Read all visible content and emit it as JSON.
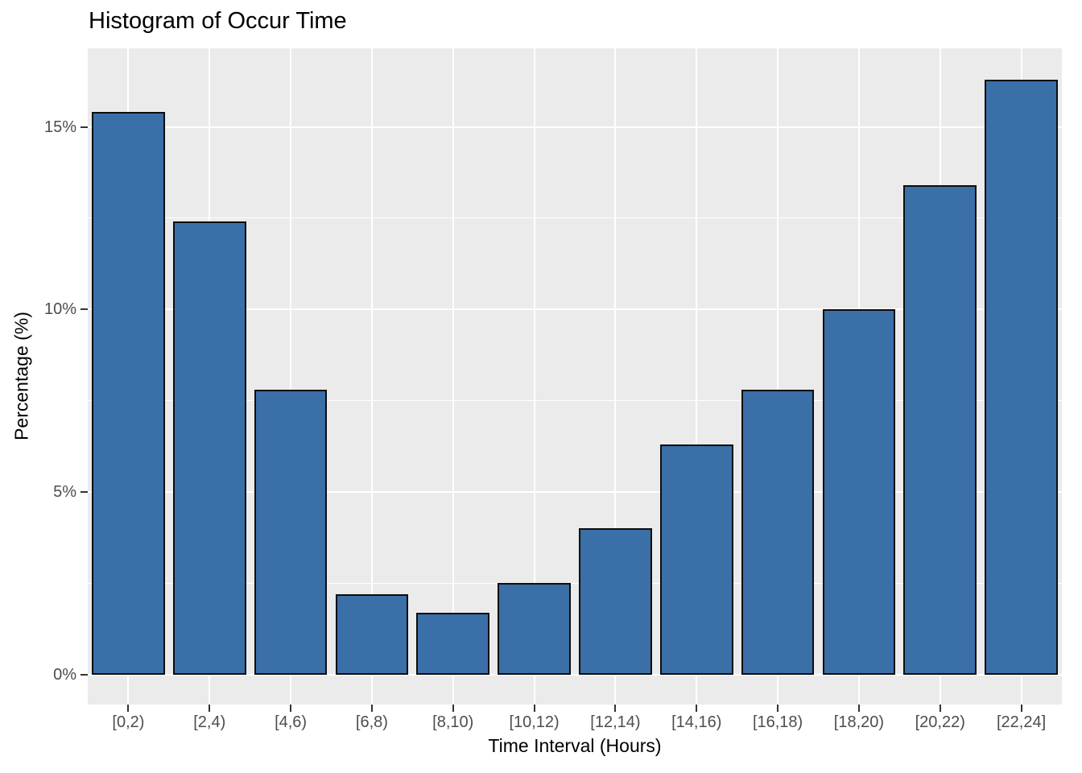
{
  "chart_data": {
    "type": "bar",
    "title": "Histogram of Occur Time",
    "xlabel": "Time Interval (Hours)",
    "ylabel": "Percentage (%)",
    "categories": [
      "[0,2)",
      "[2,4)",
      "[4,6)",
      "[6,8)",
      "[8,10)",
      "[10,12)",
      "[12,14)",
      "[14,16)",
      "[16,18)",
      "[18,20)",
      "[20,22)",
      "[22,24]"
    ],
    "values": [
      15.4,
      12.4,
      7.8,
      2.2,
      1.7,
      2.5,
      4.0,
      6.3,
      7.8,
      10.0,
      13.4,
      16.3
    ],
    "value_unit": "%",
    "ylim": [
      -0.82,
      17.15
    ],
    "y_ticks": [
      {
        "value": 0,
        "label": "0%"
      },
      {
        "value": 5,
        "label": "5%"
      },
      {
        "value": 10,
        "label": "10%"
      },
      {
        "value": 15,
        "label": "15%"
      }
    ],
    "y_minor_gridlines": [
      2.5,
      7.5,
      12.5
    ],
    "grid": true,
    "legend_position": "none",
    "bar_width_fraction": 0.9,
    "colors": {
      "bar_fill": "#3A6FA8",
      "bar_stroke": "#0D0D0D",
      "panel_background": "#EBEBEB",
      "gridline": "#FFFFFF",
      "tick_label": "#4D4D4D",
      "tick_mark": "#333333",
      "title_text": "#000000",
      "page_background": "#FFFFFF"
    }
  }
}
